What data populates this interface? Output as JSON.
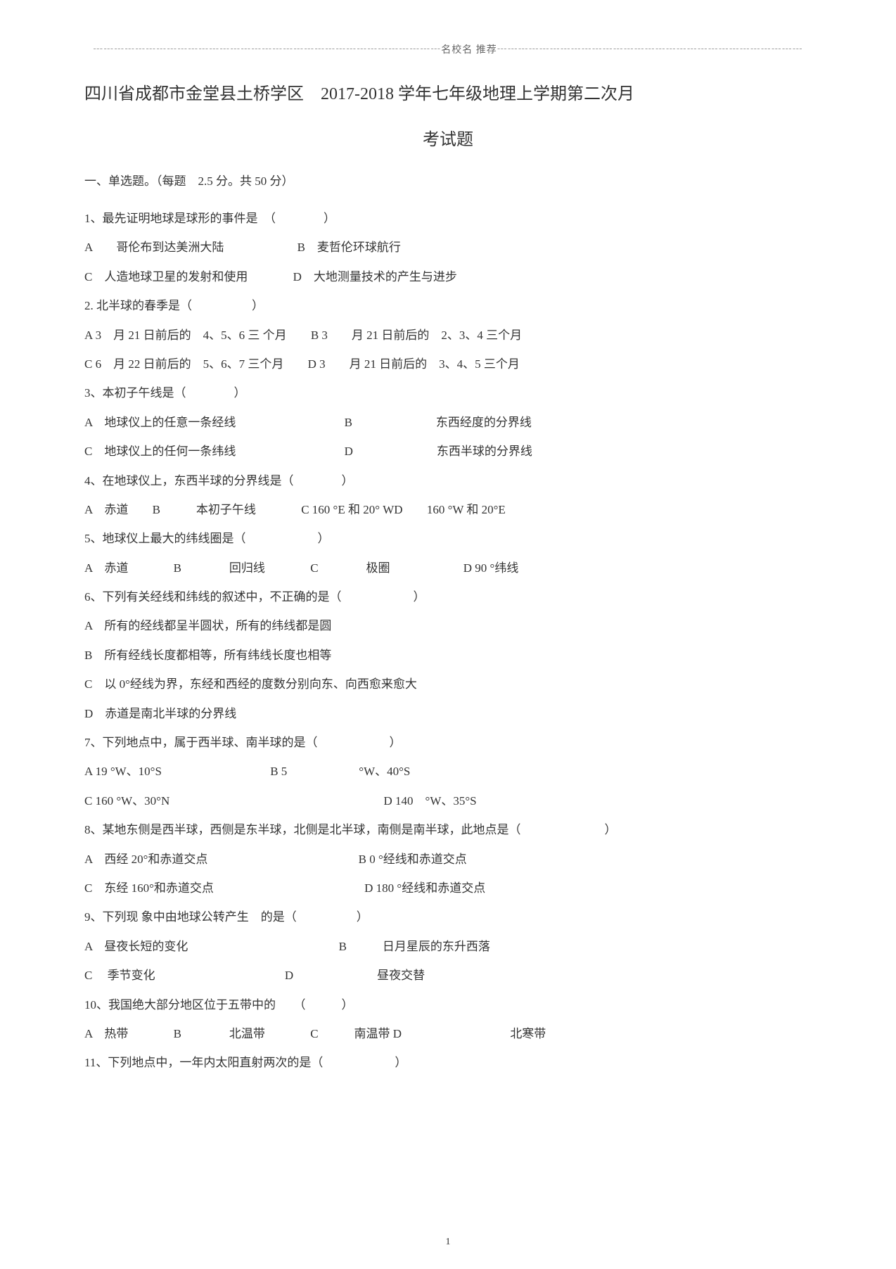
{
  "header": {
    "decoration": "┄┄┄┄┄┄┄┄┄┄┄┄┄┄┄┄┄┄┄┄┄┄┄┄┄┄┄┄┄┄┄┄┄名校名 推荐┄┄┄┄┄┄┄┄┄┄┄┄┄┄┄┄┄┄┄┄┄┄┄┄┄┄┄┄┄"
  },
  "title": {
    "line1": "四川省成都市金堂县土桥学区　2017-2018 学年七年级地理上学期第二次月",
    "line2": "考试题"
  },
  "section_header": "一、单选题。（每题　2.5 分。共 50 分）",
  "q1": {
    "text": "1、最先证明地球是球形的事件是　（　　　　）",
    "optA": "A　　哥伦布到达美洲大陆",
    "optB": "B　麦哲伦环球航行",
    "optC": "C　人造地球卫星的发射和使用",
    "optD": "D　大地测量技术的产生与进步"
  },
  "q2": {
    "text": "2. 北半球的春季是（　　　　　）",
    "optA": "A 3　月 21 日前后的　4、5、6 三 个月",
    "optB": "B 3　　月 21 日前后的　2、3、4 三个月",
    "optC": "C 6　月 22 日前后的　5、6、7 三个月",
    "optD": "D 3　　月 21 日前后的　3、4、5 三个月"
  },
  "q3": {
    "text": "3、本初子午线是（　　　　）",
    "optA": "A　地球仪上的任意一条经线",
    "optB": "B　　　　　　　东西经度的分界线",
    "optC": "C　地球仪上的任何一条纬线",
    "optD": "D　　　　　　　东西半球的分界线"
  },
  "q4": {
    "text": "4、在地球仪上，东西半球的分界线是（　　　　）",
    "optA": "A　赤道",
    "optB": "B　　　本初子午线",
    "optC": "C 160 °E 和 20° WD",
    "optD": "160 °W 和 20°E"
  },
  "q5": {
    "text": "5、地球仪上最大的纬线圈是（　　　　　　）",
    "optA": "A　赤道",
    "optB": "B　　　　回归线",
    "optC": "C　　　　极圈",
    "optD": "D 90 °纬线"
  },
  "q6": {
    "text": "6、下列有关经线和纬线的叙述中，不正确的是（　　　　　　）",
    "optA": "A　所有的经线都呈半圆状，所有的纬线都是圆",
    "optB": "B　所有经线长度都相等，所有纬线长度也相等",
    "optC": "C　以 0°经线为界，东经和西经的度数分别向东、向西愈来愈大",
    "optD": "D　赤道是南北半球的分界线"
  },
  "q7": {
    "text": "7、下列地点中，属于西半球、南半球的是（　　　　　　）",
    "optA": "A 19 °W、10°S",
    "optB": "B 5　　　　　　°W、40°S",
    "optC": "C 160 °W、30°N",
    "optD": "D 140　°W、35°S"
  },
  "q8": {
    "text": "8、某地东侧是西半球，西侧是东半球，北侧是北半球，南侧是南半球，此地点是（　　　　　　　）",
    "optA": "A　西经 20°和赤道交点",
    "optB": "B 0 °经线和赤道交点",
    "optC": "C　东经 160°和赤道交点",
    "optD": "D 180 °经线和赤道交点"
  },
  "q9": {
    "text": "9、下列现 象中由地球公转产生　的是（　　　　　）",
    "optA": "A　昼夜长短的变化",
    "optB": "B　　　日月星辰的东升西落",
    "optC": "C　 季节变化",
    "optD": "D　　　　　　　昼夜交替"
  },
  "q10": {
    "text": "10、我国绝大部分地区位于五带中的　　（　　　）",
    "optA": "A　热带",
    "optB": "B　　　　北温带",
    "optC": "C　　　南温带 D",
    "optD": "北寒带"
  },
  "q11": {
    "text": "11、下列地点中，一年内太阳直射两次的是（　　　　　　）"
  },
  "page_number": "1"
}
